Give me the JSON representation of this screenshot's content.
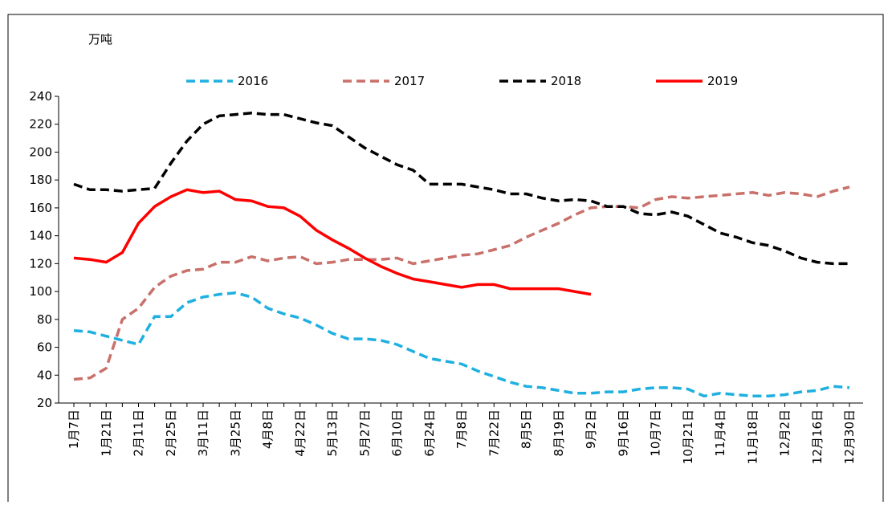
{
  "chart_data": {
    "type": "line",
    "y_label": "万吨",
    "categories": [
      "1月7日",
      null,
      "1月21日",
      null,
      "2月11日",
      null,
      "2月25日",
      null,
      "3月11日",
      null,
      "3月25日",
      null,
      "4月8日",
      null,
      "4月22日",
      null,
      "5月13日",
      null,
      "5月27日",
      null,
      "6月10日",
      null,
      "6月24日",
      null,
      "7月8日",
      null,
      "7月22日",
      null,
      "8月5日",
      null,
      "8月19日",
      null,
      "9月2日",
      null,
      "9月16日",
      null,
      "10月7日",
      null,
      "10月21日",
      null,
      "11月4日",
      null,
      "11月18日",
      null,
      "12月2日",
      null,
      "12月16日",
      null,
      "12月30日"
    ],
    "series": [
      {
        "name": "2016",
        "color": "#1fb0e0",
        "dashed": true,
        "values": [
          72,
          71,
          68,
          65,
          62,
          82,
          82,
          92,
          96,
          98,
          99,
          96,
          88,
          84,
          81,
          76,
          70,
          66,
          66,
          65,
          62,
          57,
          52,
          50,
          48,
          43,
          39,
          35,
          32,
          31,
          29,
          27,
          27,
          28,
          28,
          30,
          31,
          31,
          30,
          25,
          27,
          26,
          25,
          25,
          26,
          28,
          29,
          32,
          31
        ]
      },
      {
        "name": "2017",
        "color": "#c9706a",
        "dashed": true,
        "values": [
          37,
          38,
          45,
          80,
          88,
          103,
          111,
          115,
          116,
          121,
          121,
          125,
          122,
          124,
          125,
          120,
          121,
          123,
          123,
          123,
          124,
          120,
          122,
          124,
          126,
          127,
          130,
          133,
          139,
          144,
          149,
          155,
          160,
          161,
          161,
          160,
          166,
          168,
          167,
          168,
          169,
          170,
          171,
          169,
          171,
          170,
          168,
          172,
          175
        ]
      },
      {
        "name": "2018",
        "color": "#000000",
        "dashed": true,
        "values": [
          177,
          173,
          173,
          172,
          173,
          174,
          192,
          208,
          220,
          226,
          227,
          228,
          227,
          227,
          224,
          221,
          219,
          211,
          203,
          197,
          191,
          187,
          177,
          177,
          177,
          175,
          173,
          170,
          170,
          167,
          165,
          166,
          165,
          161,
          161,
          156,
          155,
          157,
          154,
          148,
          142,
          139,
          135,
          133,
          129,
          124,
          121,
          120,
          120
        ]
      },
      {
        "name": "2019",
        "color": "#ff0000",
        "dashed": false,
        "values": [
          124,
          123,
          121,
          128,
          149,
          161,
          168,
          173,
          171,
          172,
          166,
          165,
          161,
          160,
          154,
          144,
          137,
          131,
          124,
          118,
          113,
          109,
          107,
          105,
          103,
          105,
          105,
          102,
          102,
          102,
          102,
          100,
          98,
          null,
          null,
          null,
          null,
          null,
          null,
          null,
          null,
          null,
          null,
          null,
          null,
          null,
          null,
          null,
          null
        ]
      }
    ],
    "ylim": [
      20,
      240
    ],
    "yticks": [
      20,
      40,
      60,
      80,
      100,
      120,
      140,
      160,
      180,
      200,
      220,
      240
    ],
    "legend": "top",
    "grid": false
  }
}
